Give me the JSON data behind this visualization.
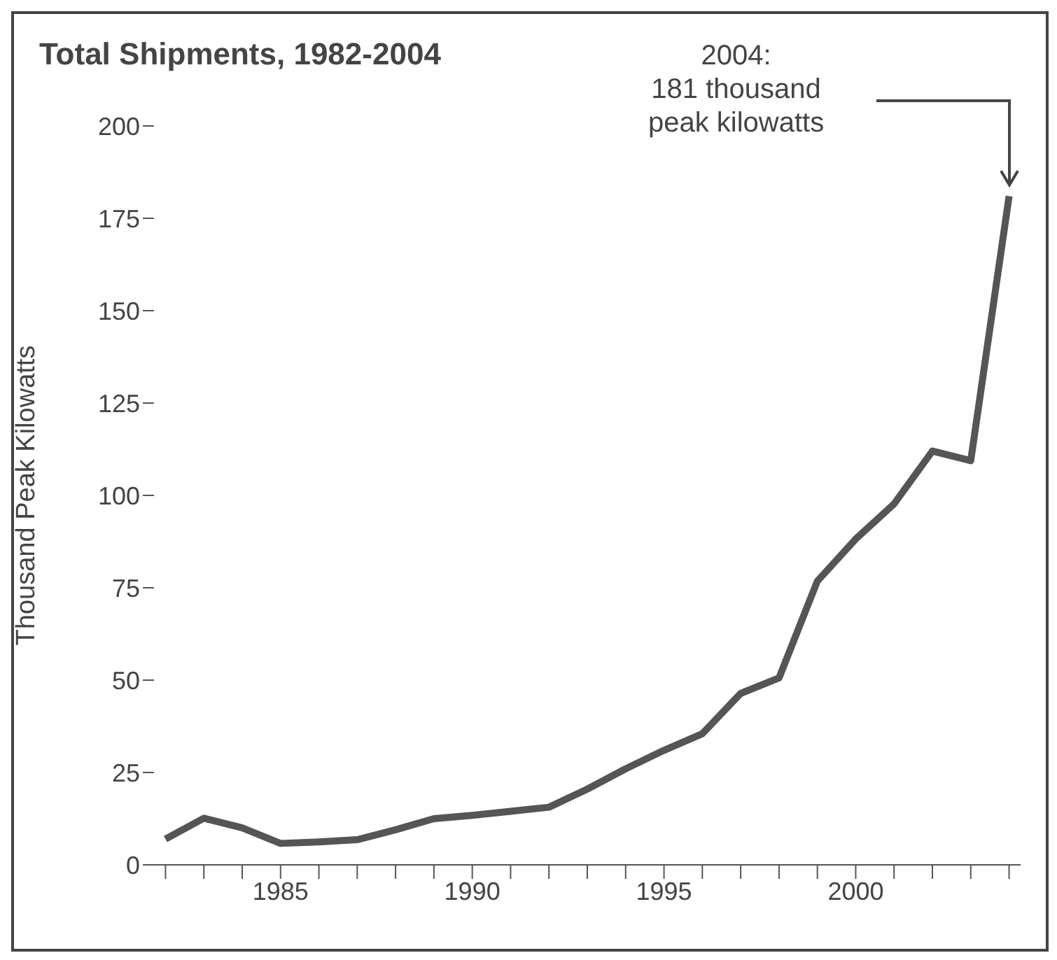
{
  "chart_data": {
    "type": "line",
    "title": "Total Shipments, 1982-2004",
    "ylabel": "Thousand Peak Kilowatts",
    "x": [
      1982,
      1983,
      1984,
      1985,
      1986,
      1987,
      1988,
      1989,
      1990,
      1991,
      1992,
      1993,
      1994,
      1995,
      1996,
      1997,
      1998,
      1999,
      2000,
      2001,
      2002,
      2003,
      2004
    ],
    "values": [
      7,
      12.6,
      10,
      5.8,
      6.2,
      6.8,
      9.5,
      12.5,
      13.4,
      14.5,
      15.6,
      20.5,
      26,
      31,
      35.5,
      46.4,
      50.6,
      76.8,
      88.2,
      97.7,
      112,
      109.4,
      181
    ],
    "color": "#555555",
    "marker": "none",
    "line_style": "solid",
    "grid": false,
    "legend": false,
    "xlim": [
      1981.7,
      2004.3
    ],
    "xticks": [
      {
        "value": 1982,
        "label": null
      },
      {
        "value": 1983,
        "label": null
      },
      {
        "value": 1984,
        "label": null
      },
      1985,
      {
        "value": 1986,
        "label": null
      },
      {
        "value": 1987,
        "label": null
      },
      {
        "value": 1988,
        "label": null
      },
      {
        "value": 1989,
        "label": null
      },
      1990,
      {
        "value": 1991,
        "label": null
      },
      {
        "value": 1992,
        "label": null
      },
      {
        "value": 1993,
        "label": null
      },
      {
        "value": 1994,
        "label": null
      },
      1995,
      {
        "value": 1996,
        "label": null
      },
      {
        "value": 1997,
        "label": null
      },
      {
        "value": 1998,
        "label": null
      },
      {
        "value": 1999,
        "label": null
      },
      2000,
      {
        "value": 2001,
        "label": null
      },
      {
        "value": 2002,
        "label": null
      },
      {
        "value": 2003,
        "label": null
      },
      {
        "value": 2004,
        "label": null
      }
    ],
    "ylim": [
      0,
      200
    ],
    "yticks": [
      0,
      25,
      50,
      75,
      100,
      125,
      150,
      175,
      200
    ],
    "annotations": [
      "2004:\n181 thousand\npeak kilowatts"
    ]
  }
}
